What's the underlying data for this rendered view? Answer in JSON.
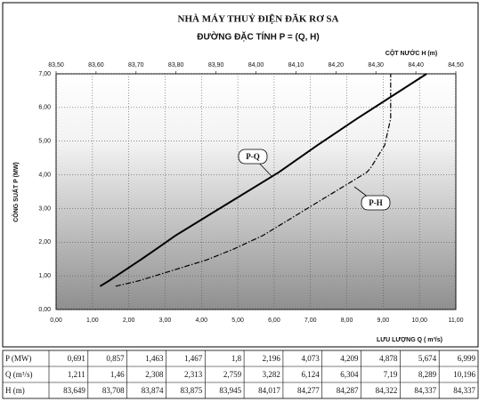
{
  "chart_data": {
    "type": "line",
    "title": "NHÀ MÁY THUỶ ĐIỆN ĐĂK RƠ SA",
    "subtitle": "ĐƯỜNG ĐẶC TÍNH  P = (Q, H)",
    "x_label": "LƯU LƯỢNG Q ( m³/s)",
    "x2_label": "CỘT NƯỚC H (m)",
    "y_label": "CÔNG SUẤT P (MW)",
    "xlim": [
      0,
      11
    ],
    "xticks": [
      {
        "value": 0,
        "label": "0,00"
      },
      {
        "value": 1,
        "label": "1,00"
      },
      {
        "value": 2,
        "label": "2,00"
      },
      {
        "value": 3,
        "label": "3,00"
      },
      {
        "value": 4,
        "label": "4,00"
      },
      {
        "value": 5,
        "label": "5,00"
      },
      {
        "value": 6,
        "label": "6,00"
      },
      {
        "value": 7,
        "label": "7,00"
      },
      {
        "value": 8,
        "label": "8,00"
      },
      {
        "value": 9,
        "label": "9,00"
      },
      {
        "value": 10,
        "label": "10,00"
      },
      {
        "value": 11,
        "label": "11,00"
      }
    ],
    "x2lim": [
      83.5,
      84.5
    ],
    "x2ticks": [
      {
        "value": 83.5,
        "label": "83,50"
      },
      {
        "value": 83.6,
        "label": "83,60"
      },
      {
        "value": 83.7,
        "label": "83,70"
      },
      {
        "value": 83.8,
        "label": "83,80"
      },
      {
        "value": 83.9,
        "label": "83,90"
      },
      {
        "value": 84.0,
        "label": "84,00"
      },
      {
        "value": 84.1,
        "label": "84,10"
      },
      {
        "value": 84.2,
        "label": "84,20"
      },
      {
        "value": 84.3,
        "label": "84,30"
      },
      {
        "value": 84.4,
        "label": "84,40"
      },
      {
        "value": 84.5,
        "label": "84,50"
      }
    ],
    "ylim": [
      0,
      7
    ],
    "yticks": [
      {
        "value": 0,
        "label": "0,00"
      },
      {
        "value": 1,
        "label": "1,00"
      },
      {
        "value": 2,
        "label": "2,00"
      },
      {
        "value": 3,
        "label": "3,00"
      },
      {
        "value": 4,
        "label": "4,00"
      },
      {
        "value": 5,
        "label": "5,00"
      },
      {
        "value": 6,
        "label": "6,00"
      },
      {
        "value": 7,
        "label": "7,00"
      }
    ],
    "grid": true,
    "series": [
      {
        "name": "P-Q",
        "color": "#000000",
        "axis": "x",
        "x": [
          1.211,
          1.46,
          2.308,
          2.313,
          2.759,
          3.282,
          6.124,
          6.304,
          7.19,
          8.289,
          10.196
        ],
        "values": [
          0.691,
          0.857,
          1.463,
          1.467,
          1.8,
          2.196,
          4.073,
          4.209,
          4.878,
          5.674,
          6.999
        ]
      },
      {
        "name": "P-H",
        "color": "#000000",
        "axis": "x2",
        "x": [
          83.649,
          83.708,
          83.874,
          83.875,
          83.945,
          84.017,
          84.277,
          84.287,
          84.322,
          84.337,
          84.337
        ],
        "values": [
          0.691,
          0.857,
          1.463,
          1.467,
          1.8,
          2.196,
          4.073,
          4.209,
          4.878,
          5.674,
          6.999
        ]
      }
    ]
  },
  "table": {
    "rows": [
      [
        "P (MW)",
        "0,691",
        "0,857",
        "1,463",
        "1,467",
        "1,8",
        "2,196",
        "4,073",
        "4,209",
        "4,878",
        "5,674",
        "6,999"
      ],
      [
        "Q (m³/s)",
        "1,211",
        "1,46",
        "2,308",
        "2,313",
        "2,759",
        "3,282",
        "6,124",
        "6,304",
        "7,19",
        "8,289",
        "10,196"
      ],
      [
        "H (m)",
        "83,649",
        "83,708",
        "83,874",
        "83,875",
        "83,945",
        "84,017",
        "84,277",
        "84,287",
        "84,322",
        "84,337",
        "84,337"
      ]
    ]
  }
}
